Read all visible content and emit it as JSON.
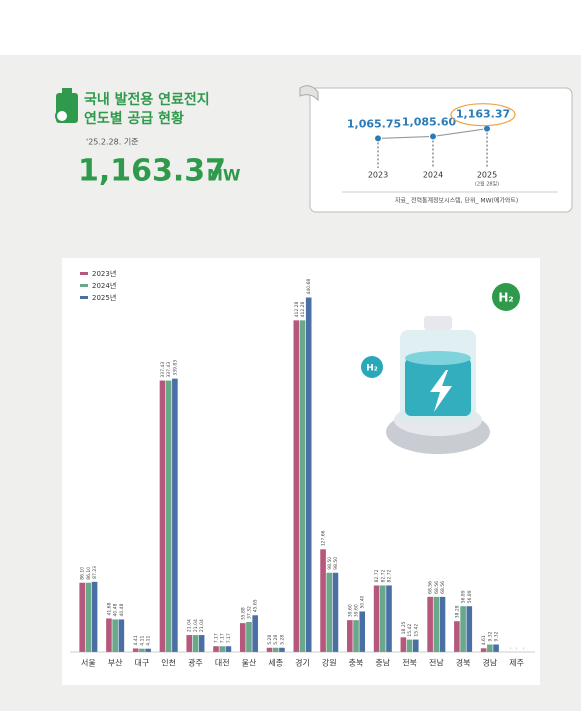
{
  "header": {
    "title_lines": [
      "국내 발전용 연료전지",
      "연도별 공급 현황"
    ],
    "date": "'25.2.28. 기준",
    "total": "1,163.37",
    "unit": "MW"
  },
  "badges": [
    "H₂",
    "H₂"
  ],
  "chart_data": [
    {
      "type": "bar",
      "categories": [
        "서울",
        "부산",
        "대구",
        "인천",
        "광주",
        "대전",
        "울산",
        "세종",
        "경기",
        "강원",
        "충북",
        "충남",
        "전북",
        "전남",
        "경북",
        "경남",
        "제주"
      ],
      "ylim": [
        0,
        450
      ],
      "series": [
        {
          "name": "2023년",
          "color": "#b5587b",
          "values": [
            86.1,
            41.68,
            4.41,
            337.43,
            21.04,
            7.17,
            35.88,
            5.28,
            412.28,
            127.66,
            39.6,
            82.72,
            18.25,
            68.56,
            38.28,
            4.61,
            0
          ],
          "value_labels": [
            "86.10",
            "41.68",
            "4.41",
            "337.43",
            "21.04",
            "7.17",
            "35.88",
            "5.28",
            "412.28",
            "127.66",
            "39.60",
            "82.72",
            "18.25",
            "68.56",
            "38.28",
            "4.61",
            "-"
          ]
        },
        {
          "name": "2024년",
          "color": "#6aa88a",
          "values": [
            86.1,
            40.48,
            4.11,
            337.43,
            21.04,
            7.17,
            37.32,
            5.28,
            412.28,
            98.5,
            39.6,
            82.72,
            15.42,
            68.56,
            56.89,
            9.32,
            0
          ],
          "value_labels": [
            "86.10",
            "40.48",
            "4.11",
            "337.43",
            "21.04",
            "7.17",
            "37.32",
            "5.28",
            "412.28",
            "98.50",
            "39.60",
            "82.72",
            "15.42",
            "68.56",
            "56.89",
            "9.32",
            "-"
          ]
        },
        {
          "name": "2025년",
          "color": "#4a6fa5",
          "values": [
            87.23,
            40.48,
            4.11,
            339.83,
            21.04,
            7.17,
            45.65,
            5.28,
            440.68,
            98.5,
            50.4,
            82.72,
            15.42,
            68.56,
            56.89,
            9.32,
            0
          ],
          "value_labels": [
            "87.23",
            "40.48",
            "4.11",
            "339.83",
            "21.04",
            "7.17",
            "45.65",
            "5.28",
            "440.68",
            "98.50",
            "50.40",
            "82.72",
            "15.42",
            "68.56",
            "56.89",
            "9.32",
            "-"
          ]
        }
      ]
    },
    {
      "type": "line",
      "categories": [
        "2023",
        "2024",
        "2025"
      ],
      "values": [
        1065.75,
        1085.6,
        1163.37
      ],
      "value_labels": [
        "1,065.75",
        "1,085.60",
        "1,163.37"
      ],
      "ylim": [
        1000,
        1400
      ],
      "color": "#2b7bb9",
      "annotation": "(2월 28일)",
      "source": "자료_ 전력통계정보시스템, 단위_ MW(메가와트)"
    }
  ]
}
